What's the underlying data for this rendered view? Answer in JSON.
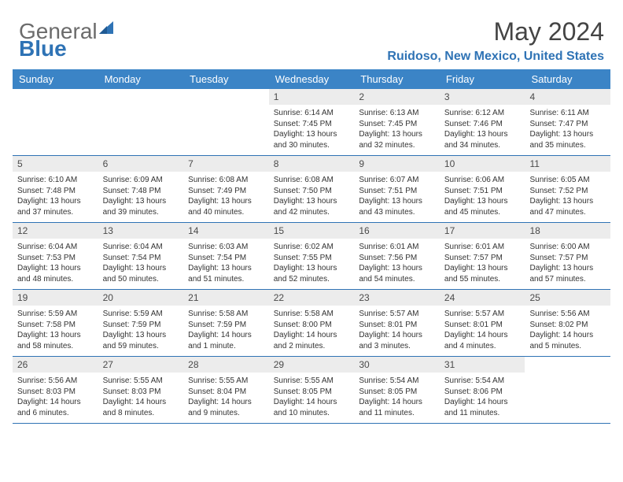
{
  "logo": {
    "general": "General",
    "blue": "Blue"
  },
  "header": {
    "month": "May 2024",
    "location": "Ruidoso, New Mexico, United States"
  },
  "colors": {
    "brand_blue": "#2f73b5",
    "header_bar": "#3b84c6",
    "logo_gray": "#6b6b6b",
    "daynum_bg": "#ececec",
    "text": "#333333"
  },
  "weekdays": [
    "Sunday",
    "Monday",
    "Tuesday",
    "Wednesday",
    "Thursday",
    "Friday",
    "Saturday"
  ],
  "weeks": [
    [
      {
        "n": "",
        "sr": "",
        "ss": "",
        "dl": ""
      },
      {
        "n": "",
        "sr": "",
        "ss": "",
        "dl": ""
      },
      {
        "n": "",
        "sr": "",
        "ss": "",
        "dl": ""
      },
      {
        "n": "1",
        "sr": "Sunrise: 6:14 AM",
        "ss": "Sunset: 7:45 PM",
        "dl": "Daylight: 13 hours and 30 minutes."
      },
      {
        "n": "2",
        "sr": "Sunrise: 6:13 AM",
        "ss": "Sunset: 7:45 PM",
        "dl": "Daylight: 13 hours and 32 minutes."
      },
      {
        "n": "3",
        "sr": "Sunrise: 6:12 AM",
        "ss": "Sunset: 7:46 PM",
        "dl": "Daylight: 13 hours and 34 minutes."
      },
      {
        "n": "4",
        "sr": "Sunrise: 6:11 AM",
        "ss": "Sunset: 7:47 PM",
        "dl": "Daylight: 13 hours and 35 minutes."
      }
    ],
    [
      {
        "n": "5",
        "sr": "Sunrise: 6:10 AM",
        "ss": "Sunset: 7:48 PM",
        "dl": "Daylight: 13 hours and 37 minutes."
      },
      {
        "n": "6",
        "sr": "Sunrise: 6:09 AM",
        "ss": "Sunset: 7:48 PM",
        "dl": "Daylight: 13 hours and 39 minutes."
      },
      {
        "n": "7",
        "sr": "Sunrise: 6:08 AM",
        "ss": "Sunset: 7:49 PM",
        "dl": "Daylight: 13 hours and 40 minutes."
      },
      {
        "n": "8",
        "sr": "Sunrise: 6:08 AM",
        "ss": "Sunset: 7:50 PM",
        "dl": "Daylight: 13 hours and 42 minutes."
      },
      {
        "n": "9",
        "sr": "Sunrise: 6:07 AM",
        "ss": "Sunset: 7:51 PM",
        "dl": "Daylight: 13 hours and 43 minutes."
      },
      {
        "n": "10",
        "sr": "Sunrise: 6:06 AM",
        "ss": "Sunset: 7:51 PM",
        "dl": "Daylight: 13 hours and 45 minutes."
      },
      {
        "n": "11",
        "sr": "Sunrise: 6:05 AM",
        "ss": "Sunset: 7:52 PM",
        "dl": "Daylight: 13 hours and 47 minutes."
      }
    ],
    [
      {
        "n": "12",
        "sr": "Sunrise: 6:04 AM",
        "ss": "Sunset: 7:53 PM",
        "dl": "Daylight: 13 hours and 48 minutes."
      },
      {
        "n": "13",
        "sr": "Sunrise: 6:04 AM",
        "ss": "Sunset: 7:54 PM",
        "dl": "Daylight: 13 hours and 50 minutes."
      },
      {
        "n": "14",
        "sr": "Sunrise: 6:03 AM",
        "ss": "Sunset: 7:54 PM",
        "dl": "Daylight: 13 hours and 51 minutes."
      },
      {
        "n": "15",
        "sr": "Sunrise: 6:02 AM",
        "ss": "Sunset: 7:55 PM",
        "dl": "Daylight: 13 hours and 52 minutes."
      },
      {
        "n": "16",
        "sr": "Sunrise: 6:01 AM",
        "ss": "Sunset: 7:56 PM",
        "dl": "Daylight: 13 hours and 54 minutes."
      },
      {
        "n": "17",
        "sr": "Sunrise: 6:01 AM",
        "ss": "Sunset: 7:57 PM",
        "dl": "Daylight: 13 hours and 55 minutes."
      },
      {
        "n": "18",
        "sr": "Sunrise: 6:00 AM",
        "ss": "Sunset: 7:57 PM",
        "dl": "Daylight: 13 hours and 57 minutes."
      }
    ],
    [
      {
        "n": "19",
        "sr": "Sunrise: 5:59 AM",
        "ss": "Sunset: 7:58 PM",
        "dl": "Daylight: 13 hours and 58 minutes."
      },
      {
        "n": "20",
        "sr": "Sunrise: 5:59 AM",
        "ss": "Sunset: 7:59 PM",
        "dl": "Daylight: 13 hours and 59 minutes."
      },
      {
        "n": "21",
        "sr": "Sunrise: 5:58 AM",
        "ss": "Sunset: 7:59 PM",
        "dl": "Daylight: 14 hours and 1 minute."
      },
      {
        "n": "22",
        "sr": "Sunrise: 5:58 AM",
        "ss": "Sunset: 8:00 PM",
        "dl": "Daylight: 14 hours and 2 minutes."
      },
      {
        "n": "23",
        "sr": "Sunrise: 5:57 AM",
        "ss": "Sunset: 8:01 PM",
        "dl": "Daylight: 14 hours and 3 minutes."
      },
      {
        "n": "24",
        "sr": "Sunrise: 5:57 AM",
        "ss": "Sunset: 8:01 PM",
        "dl": "Daylight: 14 hours and 4 minutes."
      },
      {
        "n": "25",
        "sr": "Sunrise: 5:56 AM",
        "ss": "Sunset: 8:02 PM",
        "dl": "Daylight: 14 hours and 5 minutes."
      }
    ],
    [
      {
        "n": "26",
        "sr": "Sunrise: 5:56 AM",
        "ss": "Sunset: 8:03 PM",
        "dl": "Daylight: 14 hours and 6 minutes."
      },
      {
        "n": "27",
        "sr": "Sunrise: 5:55 AM",
        "ss": "Sunset: 8:03 PM",
        "dl": "Daylight: 14 hours and 8 minutes."
      },
      {
        "n": "28",
        "sr": "Sunrise: 5:55 AM",
        "ss": "Sunset: 8:04 PM",
        "dl": "Daylight: 14 hours and 9 minutes."
      },
      {
        "n": "29",
        "sr": "Sunrise: 5:55 AM",
        "ss": "Sunset: 8:05 PM",
        "dl": "Daylight: 14 hours and 10 minutes."
      },
      {
        "n": "30",
        "sr": "Sunrise: 5:54 AM",
        "ss": "Sunset: 8:05 PM",
        "dl": "Daylight: 14 hours and 11 minutes."
      },
      {
        "n": "31",
        "sr": "Sunrise: 5:54 AM",
        "ss": "Sunset: 8:06 PM",
        "dl": "Daylight: 14 hours and 11 minutes."
      },
      {
        "n": "",
        "sr": "",
        "ss": "",
        "dl": ""
      }
    ]
  ]
}
